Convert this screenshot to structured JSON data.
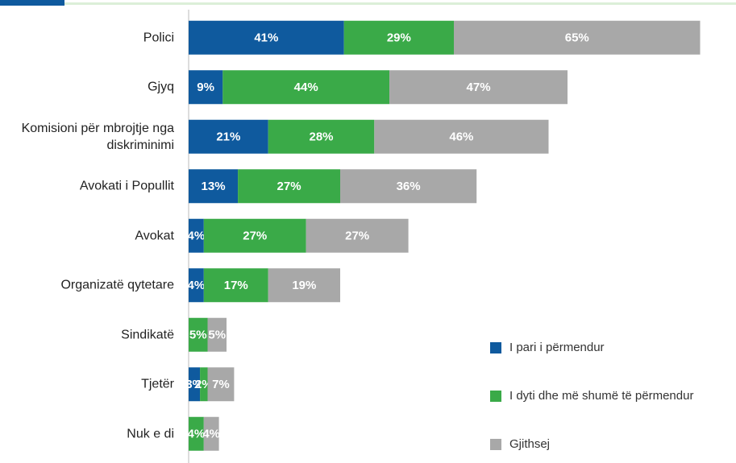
{
  "chart_data": {
    "type": "stacked-bar-horizontal",
    "categories": [
      "Polici",
      "Gjyq",
      "Komisioni për mbrojtje nga diskriminimi",
      "Avokati i Popullit",
      "Avokat",
      "Organizatë qytetare",
      "Sindikatë",
      "Tjetër",
      "Nuk e di"
    ],
    "xlim": [
      0,
      140
    ],
    "legend": "lower right",
    "series": [
      {
        "name": "I pari i përmendur",
        "color": "#0f5a9e",
        "values": [
          41,
          9,
          21,
          13,
          4,
          4,
          null,
          3,
          null
        ],
        "value_labels": [
          "41%",
          "9%",
          "21%",
          "13%",
          "4%",
          "4%",
          null,
          "3%",
          null
        ]
      },
      {
        "name": "I dyti dhe më shumë të përmendur",
        "color": "#3aaa48",
        "values": [
          29,
          44,
          28,
          27,
          27,
          17,
          5,
          2,
          4
        ],
        "value_labels": [
          "29%",
          "44%",
          "28%",
          "27%",
          "27%",
          "17%",
          "5%",
          "2%",
          "4%"
        ]
      },
      {
        "name": "Gjithsej",
        "color": "#a8a8a8",
        "values": [
          65,
          47,
          46,
          36,
          27,
          19,
          5,
          7,
          4
        ],
        "value_labels": [
          "65%",
          "47%",
          "46%",
          "36%",
          "27%",
          "19%",
          "5%",
          "7%",
          "4%"
        ]
      }
    ]
  }
}
